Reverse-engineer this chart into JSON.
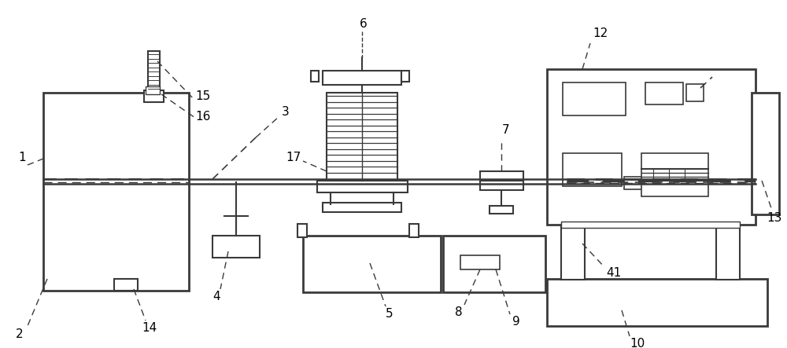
{
  "bg_color": "#ffffff",
  "line_color": "#3a3a3a",
  "fig_width": 10.0,
  "fig_height": 4.43
}
